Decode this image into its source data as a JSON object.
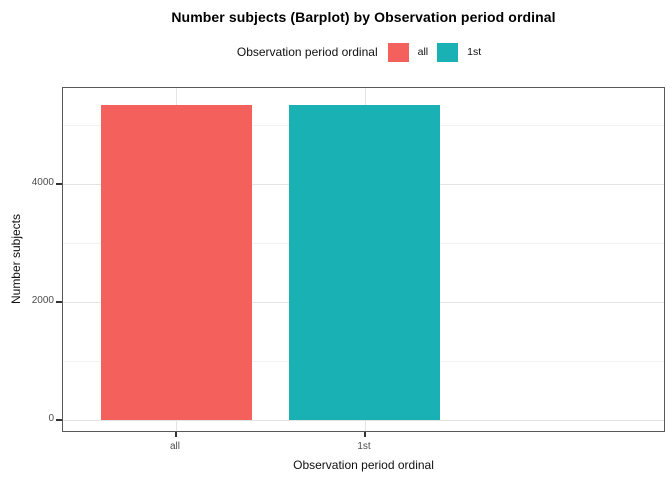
{
  "chart_data": {
    "type": "bar",
    "title": "Number subjects (Barplot) by Observation period ordinal",
    "xlabel": "Observation period ordinal",
    "ylabel": "Number subjects",
    "categories": [
      "all",
      "1st"
    ],
    "values": [
      5340,
      5340
    ],
    "bar_colors": [
      "#f4605c",
      "#1ab1b4"
    ],
    "ylim": [
      0,
      5600
    ],
    "yticks_major": [
      0,
      2000,
      4000
    ],
    "yticks_minor": [
      1000,
      3000,
      5000
    ],
    "grid": "on",
    "legend": {
      "position": "top",
      "title": "Observation period ordinal",
      "entries": [
        {
          "label": "all",
          "color": "#f4605c"
        },
        {
          "label": "1st",
          "color": "#1ab1b4"
        }
      ]
    },
    "style": {
      "panel_background": "#ffffff",
      "panel_border": "#595959",
      "grid_major_color": "#e4e4e4",
      "grid_minor_color": "#f2f2f2",
      "tick_color": "#333333",
      "tick_label_color": "#4d4d4d",
      "title_color": "#000000"
    }
  }
}
